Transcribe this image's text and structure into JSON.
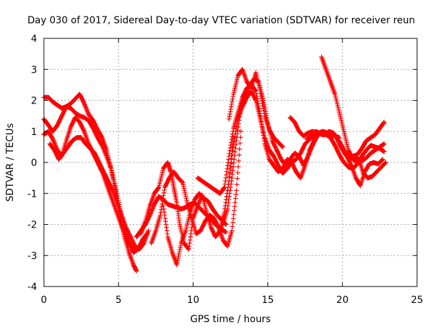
{
  "chart_data": {
    "type": "scatter",
    "title": "Day 030 of 2017, Sidereal Day-to-day VTEC variation (SDTVAR) for receiver reun",
    "xlabel": "GPS time / hours",
    "ylabel": "SDTVAR / TECUs",
    "xlim": [
      0,
      25
    ],
    "ylim": [
      -4,
      4
    ],
    "xticks": [
      "0",
      "5",
      "10",
      "15",
      "20",
      "25"
    ],
    "yticks": [
      "4",
      "3",
      "2",
      "1",
      "0",
      "-1",
      "-2",
      "-3",
      "-4"
    ],
    "grid": true,
    "marker": "+",
    "marker_color": "#ff0000",
    "series": [
      {
        "x": [
          0.0,
          0.3,
          0.6,
          0.9,
          1.2,
          1.5,
          1.8,
          2.1,
          2.4,
          2.7,
          3.0,
          3.3,
          3.6,
          3.9,
          4.2,
          4.5,
          4.8,
          5.1,
          5.4,
          5.7,
          6.0,
          6.3,
          6.6,
          6.9
        ],
        "values": [
          2.1,
          2.1,
          1.95,
          1.85,
          1.75,
          1.8,
          1.9,
          2.05,
          2.2,
          1.9,
          1.55,
          1.35,
          1.05,
          0.8,
          0.4,
          -0.2,
          -0.8,
          -1.5,
          -2.1,
          -2.6,
          -2.9,
          -2.8,
          -2.5,
          -2.3
        ]
      },
      {
        "x": [
          0.0,
          0.3,
          0.6,
          0.9,
          1.2,
          1.5,
          1.8,
          2.1,
          2.4,
          2.7,
          3.0,
          3.3,
          3.6,
          3.9,
          4.2,
          4.5,
          4.8,
          5.1,
          5.4,
          5.7,
          6.0,
          6.2
        ],
        "values": [
          1.4,
          1.2,
          1.0,
          1.2,
          1.5,
          1.8,
          1.75,
          1.6,
          1.5,
          1.45,
          1.35,
          1.1,
          0.8,
          0.55,
          0.2,
          -0.2,
          -0.9,
          -1.7,
          -2.4,
          -2.9,
          -3.3,
          -3.5
        ]
      },
      {
        "x": [
          0.0,
          0.3,
          0.6,
          0.9,
          1.2,
          1.5,
          1.8,
          2.1,
          2.4,
          2.7,
          3.0,
          3.3,
          3.6,
          3.9,
          4.2,
          4.5,
          4.8,
          5.1,
          5.4,
          5.7,
          6.0
        ],
        "values": [
          0.9,
          1.0,
          0.75,
          0.4,
          0.2,
          0.7,
          1.15,
          1.45,
          1.3,
          1.0,
          0.6,
          0.3,
          0.0,
          -0.3,
          -0.7,
          -1.1,
          -1.5,
          -1.9,
          -2.3,
          -2.6,
          -2.8
        ]
      },
      {
        "x": [
          0.4,
          0.7,
          1.0,
          1.3,
          1.6,
          1.9,
          2.2,
          2.5,
          2.8,
          3.1,
          3.4,
          3.7,
          4.0,
          4.3,
          4.6,
          4.9,
          5.2,
          5.5,
          5.8,
          6.1,
          6.4,
          6.7,
          7.0
        ],
        "values": [
          0.6,
          0.4,
          0.1,
          0.3,
          0.5,
          0.7,
          0.8,
          0.8,
          0.6,
          0.45,
          0.3,
          0.0,
          -0.3,
          -0.6,
          -0.9,
          -1.3,
          -1.7,
          -2.1,
          -2.4,
          -2.7,
          -2.8,
          -2.6,
          -2.2
        ]
      },
      {
        "x": [
          6.2,
          6.5,
          6.8,
          7.1,
          7.4,
          7.7,
          8.0,
          8.3,
          8.6,
          8.9,
          9.2,
          9.5,
          9.8,
          10.1,
          10.4,
          10.7,
          11.0,
          11.3,
          11.6,
          11.9,
          12.2
        ],
        "values": [
          -2.4,
          -2.2,
          -2.0,
          -1.7,
          -1.35,
          -1.1,
          -1.2,
          -1.35,
          -1.4,
          -1.45,
          -1.5,
          -1.45,
          -1.35,
          -1.3,
          -1.45,
          -1.6,
          -1.75,
          -1.9,
          -2.05,
          -2.15,
          -2.25
        ]
      },
      {
        "x": [
          6.5,
          6.8,
          7.1,
          7.4,
          7.7,
          8.0,
          8.3,
          8.5,
          8.7,
          8.9,
          9.1,
          9.4,
          9.7,
          10.0,
          10.3,
          10.6,
          10.9,
          11.2,
          11.5,
          11.8,
          12.1,
          12.4,
          12.7
        ],
        "values": [
          -2.3,
          -1.9,
          -1.4,
          -1.0,
          -0.8,
          -0.2,
          0.0,
          -0.3,
          -0.8,
          -1.3,
          -2.0,
          -2.6,
          -2.8,
          -1.8,
          -1.4,
          -1.05,
          -1.6,
          -2.1,
          -2.4,
          -2.2,
          -1.6,
          -0.6,
          0.8
        ]
      },
      {
        "x": [
          7.2,
          7.5,
          7.8,
          8.1,
          8.4,
          8.7,
          9.0,
          9.3,
          9.6,
          9.9,
          10.2,
          10.5,
          10.8,
          11.1,
          11.4,
          11.7,
          12.0,
          12.3,
          12.6,
          12.9,
          13.2
        ],
        "values": [
          -2.6,
          -2.2,
          -1.7,
          -0.8,
          -0.5,
          -0.3,
          -0.5,
          -0.65,
          -1.3,
          -1.8,
          -2.3,
          -2.2,
          -1.9,
          -1.7,
          -1.8,
          -2.1,
          -2.5,
          -2.7,
          -2.2,
          -0.9,
          1.0
        ]
      },
      {
        "x": [
          8.0,
          8.3,
          8.6,
          8.9,
          9.2,
          9.5,
          9.8,
          10.1,
          10.4,
          10.7,
          11.0,
          11.3,
          11.6,
          11.9,
          12.2
        ],
        "values": [
          -1.4,
          -2.4,
          -2.9,
          -3.3,
          -2.6,
          -2.2,
          -1.6,
          -1.2,
          -1.0,
          -1.15,
          -1.25,
          -1.5,
          -1.7,
          -1.85,
          -2.0
        ]
      },
      {
        "x": [
          10.3,
          10.6,
          10.9,
          11.2,
          11.5,
          11.8,
          12.1,
          12.4,
          12.7,
          13.0,
          13.3,
          13.6,
          13.9,
          14.2,
          14.5,
          14.8,
          15.1,
          15.4,
          15.7,
          16.0,
          16.3,
          16.6,
          16.9,
          17.2,
          17.5,
          17.8,
          18.1,
          18.4
        ],
        "values": [
          -0.5,
          -0.6,
          -0.7,
          -0.8,
          -0.9,
          -1.0,
          -0.8,
          0.2,
          1.1,
          1.6,
          2.1,
          2.4,
          2.5,
          2.3,
          1.5,
          0.6,
          0.1,
          -0.1,
          -0.3,
          -0.2,
          0.1,
          0.0,
          0.1,
          0.3,
          0.6,
          0.75,
          0.85,
          0.95
        ]
      },
      {
        "x": [
          11.8,
          12.1,
          12.4,
          12.7,
          13.0,
          13.3,
          13.6,
          13.9,
          14.2,
          14.5,
          14.8,
          15.1,
          15.4,
          15.7,
          16.0,
          16.3,
          16.6,
          16.9,
          17.2,
          17.5,
          17.8,
          18.1,
          18.4,
          18.7,
          19.0
        ],
        "values": [
          -2.3,
          -1.6,
          -0.6,
          0.6,
          1.4,
          1.8,
          2.1,
          2.3,
          2.0,
          1.4,
          0.8,
          0.4,
          0.2,
          -0.1,
          -0.35,
          -0.2,
          0.0,
          -0.3,
          -0.5,
          -0.1,
          0.4,
          0.7,
          0.9,
          1.0,
          0.95
        ]
      },
      {
        "x": [
          12.0,
          12.3,
          12.6,
          12.9,
          13.2,
          13.5,
          13.8,
          14.1,
          14.4,
          14.7,
          15.0,
          15.3,
          15.6,
          15.9,
          16.2,
          16.5,
          16.8,
          17.1,
          17.4,
          17.7,
          18.0,
          18.3,
          18.6,
          18.9,
          19.2,
          19.5,
          19.8
        ],
        "values": [
          -2.0,
          -1.5,
          -0.5,
          0.7,
          1.8,
          2.2,
          2.5,
          2.7,
          2.6,
          2.0,
          1.3,
          0.7,
          0.4,
          0.1,
          -0.1,
          0.1,
          0.3,
          0.2,
          -0.1,
          0.2,
          0.55,
          0.85,
          1.0,
          0.95,
          0.9,
          0.85,
          0.8
        ]
      },
      {
        "x": [
          12.4,
          12.7,
          13.0,
          13.3,
          13.6,
          13.9,
          14.2,
          14.5,
          14.8,
          15.1,
          15.4,
          15.7,
          16.0
        ],
        "values": [
          1.4,
          2.2,
          2.8,
          3.0,
          2.6,
          2.4,
          2.9,
          2.3,
          1.5,
          1.05,
          0.8,
          0.65,
          0.5
        ]
      },
      {
        "x": [
          16.5,
          16.8,
          17.1,
          17.4,
          17.7,
          18.0,
          18.3,
          18.6,
          18.9,
          19.2,
          19.5,
          19.8,
          20.1,
          20.4,
          20.7,
          21.0,
          21.3,
          21.6,
          21.9,
          22.2,
          22.5,
          22.8
        ],
        "values": [
          1.45,
          1.3,
          1.0,
          0.85,
          0.95,
          1.0,
          0.95,
          0.9,
          0.9,
          0.8,
          0.55,
          0.25,
          0.0,
          -0.15,
          -0.2,
          -0.05,
          0.2,
          0.4,
          0.55,
          0.5,
          0.45,
          0.35
        ]
      },
      {
        "x": [
          18.6,
          18.9,
          19.2,
          19.5,
          19.8,
          20.1,
          20.4,
          20.7,
          21.0,
          21.3,
          21.6,
          21.9,
          22.2,
          22.5,
          22.8
        ],
        "values": [
          3.4,
          3.0,
          2.6,
          2.2,
          1.6,
          1.0,
          0.4,
          0.1,
          0.0,
          0.05,
          0.15,
          0.3,
          0.4,
          0.5,
          0.6
        ]
      },
      {
        "x": [
          17.6,
          17.9,
          18.2,
          18.5,
          18.8,
          19.1,
          19.4,
          19.7,
          20.0,
          20.3,
          20.6,
          20.9,
          21.2,
          21.5,
          21.8,
          22.1,
          22.4,
          22.7
        ],
        "values": [
          0.75,
          0.85,
          1.0,
          0.95,
          0.9,
          1.0,
          0.95,
          0.75,
          0.5,
          0.2,
          -0.1,
          -0.5,
          -0.75,
          -0.3,
          -0.05,
          0.0,
          -0.05,
          0.1
        ]
      },
      {
        "x": [
          20.4,
          20.7,
          21.0,
          21.3,
          21.6,
          21.9,
          22.2,
          22.5,
          22.8
        ],
        "values": [
          0.3,
          0.2,
          0.25,
          0.45,
          0.7,
          0.8,
          0.9,
          1.1,
          1.3
        ]
      },
      {
        "x": [
          19.6,
          19.9,
          20.2,
          20.5,
          20.8,
          21.1,
          21.4,
          21.7,
          22.0,
          22.3,
          22.6,
          22.9
        ],
        "values": [
          0.8,
          0.5,
          0.25,
          0.1,
          0.2,
          0.1,
          -0.35,
          -0.5,
          -0.45,
          -0.3,
          -0.15,
          0.0
        ]
      }
    ]
  }
}
